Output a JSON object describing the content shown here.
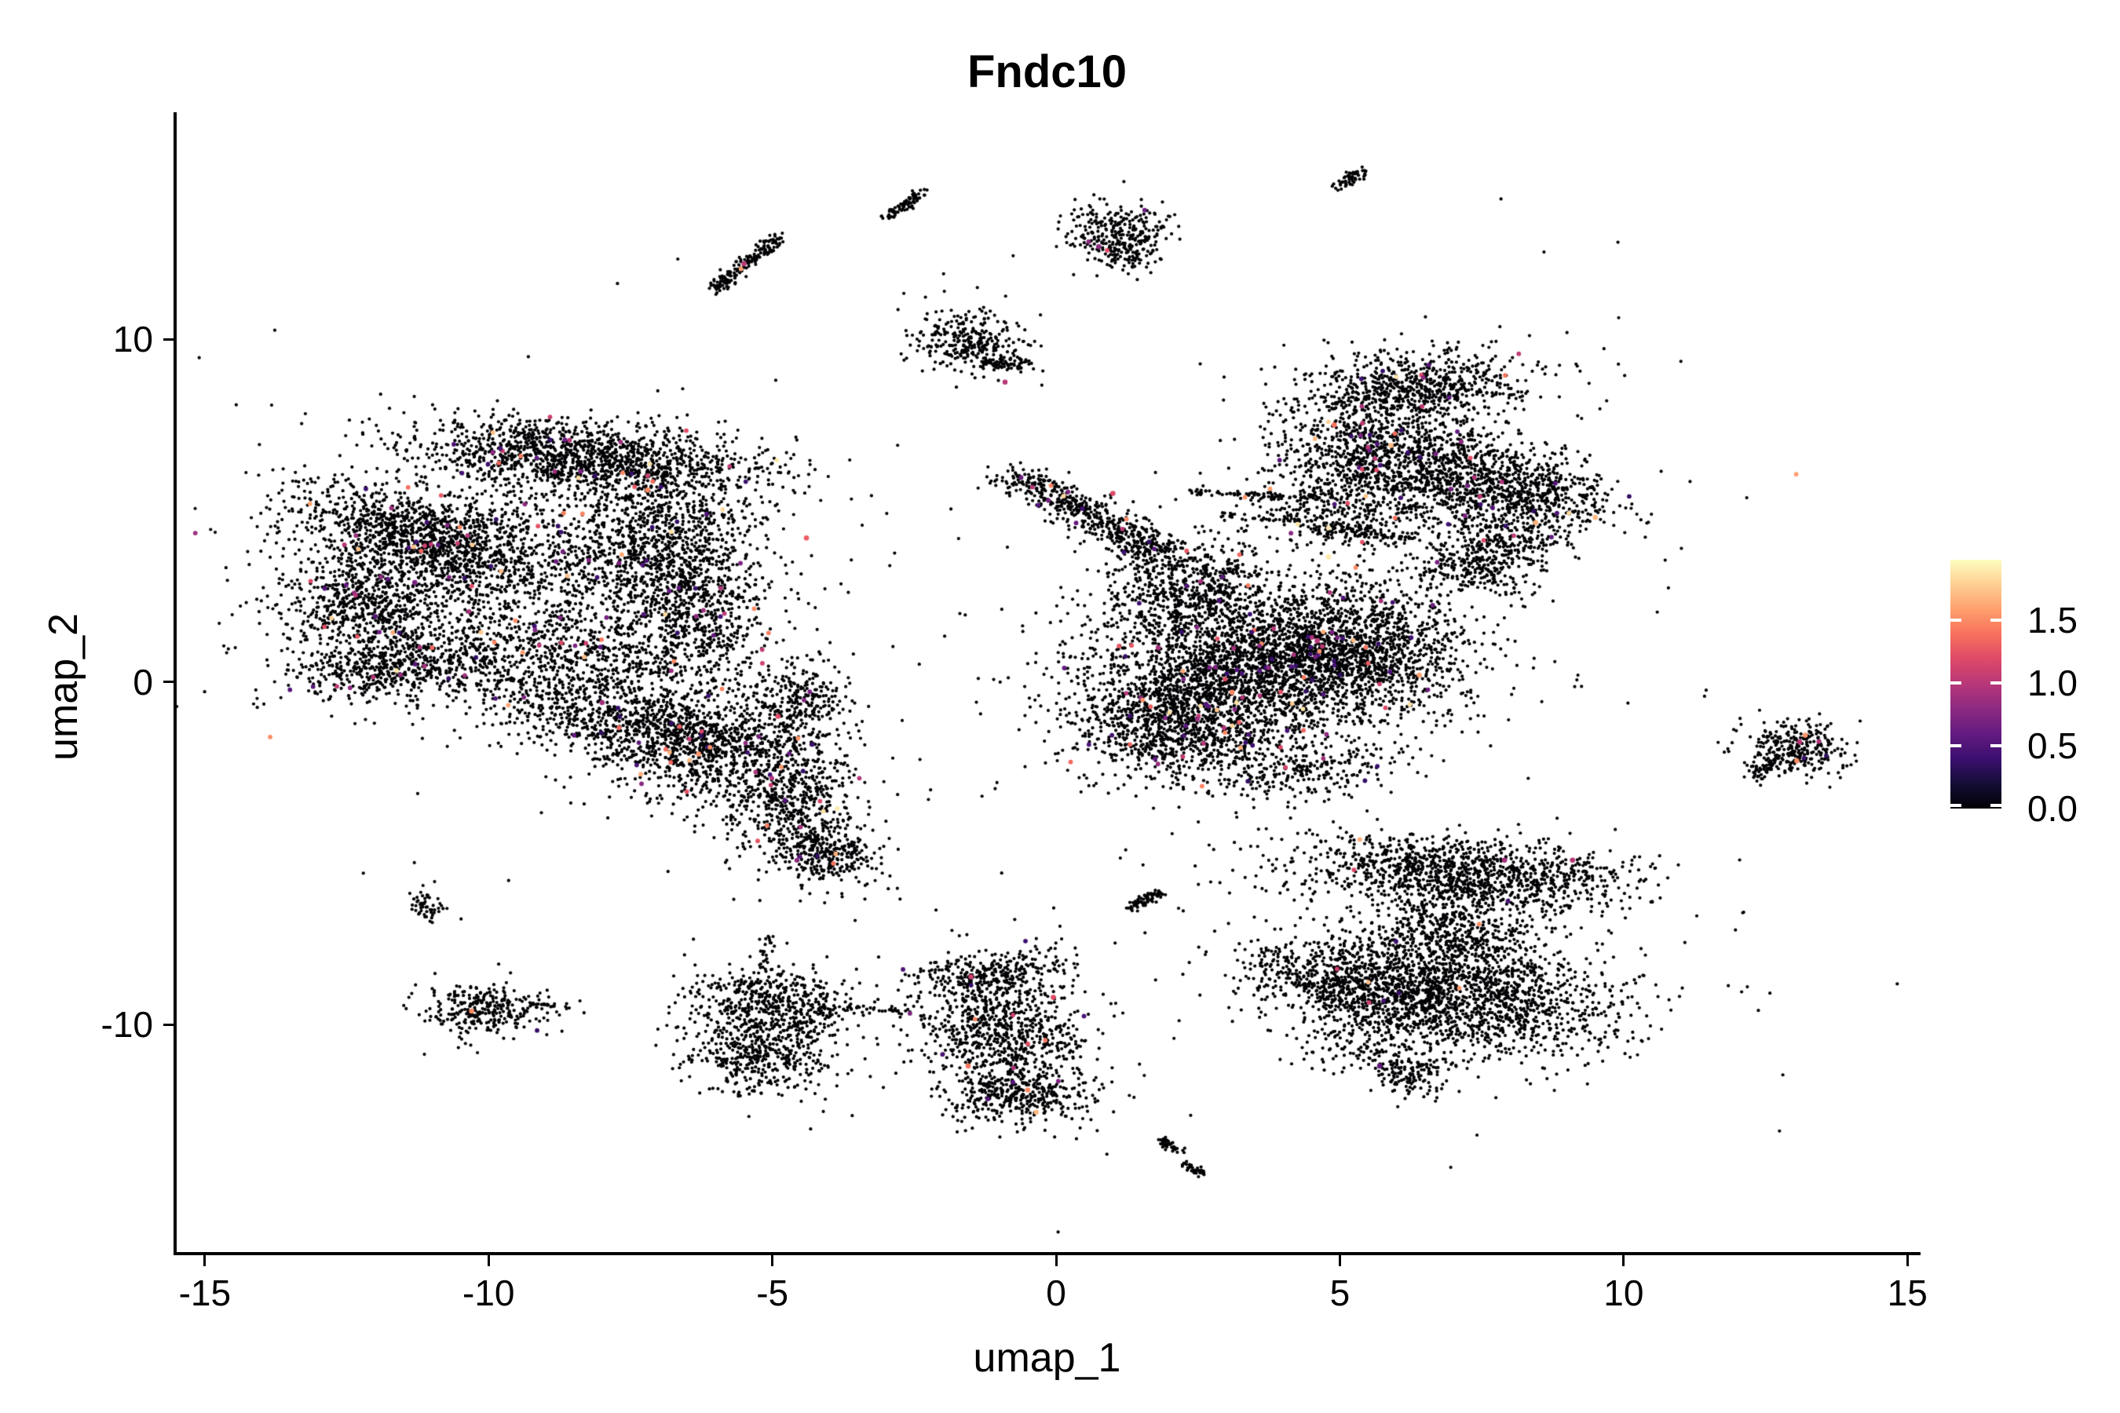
{
  "title": "Fndc10",
  "axes": {
    "x": {
      "label": "umap_1",
      "range": [
        -15.51,
        15.19
      ],
      "ticks": [
        {
          "value": -15,
          "label": "-15"
        },
        {
          "value": -10,
          "label": "-10"
        },
        {
          "value": -5,
          "label": "-5"
        },
        {
          "value": 0,
          "label": "0"
        },
        {
          "value": 5,
          "label": "5"
        },
        {
          "value": 10,
          "label": "10"
        },
        {
          "value": 15,
          "label": "15"
        }
      ]
    },
    "y": {
      "label": "umap_2",
      "range": [
        -16.63,
        16.62
      ],
      "ticks": [
        {
          "value": -10,
          "label": "-10"
        },
        {
          "value": 0,
          "label": "0"
        },
        {
          "value": 10,
          "label": "10"
        }
      ]
    }
  },
  "legend": {
    "max_value": 1.98,
    "ticks": [
      {
        "value": 1.5,
        "label": "1.5"
      },
      {
        "value": 1.0,
        "label": "1.0"
      },
      {
        "value": 0.5,
        "label": "0.5"
      },
      {
        "value": 0.0,
        "label": "0.0"
      }
    ],
    "gradient_stops": [
      "#000004",
      "#140e36",
      "#3b0f70",
      "#641a80",
      "#8c2981",
      "#b73779",
      "#de4968",
      "#f7705c",
      "#fe9f6d",
      "#fecf92",
      "#fcfdbf"
    ]
  },
  "chart_data": {
    "type": "scatter",
    "title": "Fndc10",
    "xlabel": "umap_1",
    "ylabel": "umap_2",
    "xlim": [
      -15.51,
      15.19
    ],
    "ylim": [
      -16.63,
      16.62
    ],
    "grid": false,
    "legend_position": "right",
    "point_color_zero": "#000004",
    "color_scale": {
      "name": "magma",
      "domain": [
        0,
        1.98
      ]
    },
    "seed": 42,
    "clusters": [
      {
        "n": 1400,
        "x": -8.3,
        "y": 6.55,
        "sx": 1.55,
        "sy": 0.5,
        "rot": -8,
        "cr": 0.02
      },
      {
        "n": 900,
        "x": -11.2,
        "y": 4.3,
        "sx": 1.15,
        "sy": 0.5,
        "rot": -28,
        "cr": 0.02
      },
      {
        "n": 700,
        "x": -12.1,
        "y": 2.3,
        "sx": 0.75,
        "sy": 0.95,
        "rot": 0,
        "cr": 0.02
      },
      {
        "n": 550,
        "x": -11.5,
        "y": 0.5,
        "sx": 1.05,
        "sy": 0.45,
        "rot": 14,
        "cr": 0.02
      },
      {
        "n": 1600,
        "x": -9.7,
        "y": 3.1,
        "sx": 1.85,
        "sy": 1.6,
        "rot": 0,
        "cr": 0.02
      },
      {
        "n": 950,
        "x": -6.9,
        "y": 4.1,
        "sx": 0.85,
        "sy": 1.15,
        "rot": 0,
        "cr": 0.02
      },
      {
        "n": 700,
        "x": -8.1,
        "y": 0.4,
        "sx": 1.5,
        "sy": 0.75,
        "rot": 5,
        "cr": 0.02
      },
      {
        "n": 420,
        "x": -6.3,
        "y": 1.9,
        "sx": 0.6,
        "sy": 0.95,
        "rot": 0,
        "cr": 0.02
      },
      {
        "n": 600,
        "x": -7.5,
        "y": -1.2,
        "sx": 1.05,
        "sy": 0.5,
        "rot": -12,
        "cr": 0.018
      },
      {
        "n": 900,
        "x": -5.9,
        "y": -2.0,
        "sx": 1.05,
        "sy": 0.8,
        "rot": 0,
        "cr": 0.018
      },
      {
        "n": 500,
        "x": -4.7,
        "y": -3.6,
        "sx": 0.55,
        "sy": 0.85,
        "rot": 0,
        "cr": 0.018
      },
      {
        "n": 300,
        "x": -4.0,
        "y": -5.1,
        "sx": 0.5,
        "sy": 0.4,
        "rot": -25,
        "cr": 0.018
      },
      {
        "n": 260,
        "x": -4.5,
        "y": -0.5,
        "sx": 0.5,
        "sy": 0.55,
        "rot": 0,
        "cr": 0.018
      },
      {
        "n": 170,
        "line": 1,
        "x": -6.05,
        "y": 11.45,
        "x2": -4.9,
        "y2": 12.95,
        "sx": 0.09,
        "sy": 0.09,
        "cr": 0.006
      },
      {
        "n": 80,
        "line": 1,
        "x": -2.95,
        "y": 13.55,
        "x2": -2.35,
        "y2": 14.35,
        "sx": 0.07,
        "sy": 0.07,
        "cr": 0
      },
      {
        "n": 300,
        "x": 1.12,
        "y": 13.1,
        "sx": 0.42,
        "sy": 0.46,
        "rot": 20,
        "cr": 0.01
      },
      {
        "n": 40,
        "x": 1.3,
        "y": 12.4,
        "sx": 0.3,
        "sy": 0.25,
        "rot": 0,
        "cr": 0
      },
      {
        "n": 300,
        "x": -1.5,
        "y": 9.95,
        "sx": 0.55,
        "sy": 0.42,
        "rot": -35,
        "cr": 0.01
      },
      {
        "n": 70,
        "line": 1,
        "x": -1.3,
        "y": 9.3,
        "x2": -0.5,
        "y2": 9.25,
        "sx": 0.08,
        "sy": 0.08,
        "cr": 0.01
      },
      {
        "n": 60,
        "line": 1,
        "x": 4.95,
        "y": 14.4,
        "x2": 5.45,
        "y2": 14.95,
        "sx": 0.07,
        "sy": 0.07,
        "cr": 0
      },
      {
        "n": 2600,
        "x": 3.6,
        "y": 0.7,
        "sx": 1.5,
        "sy": 1.05,
        "rot": 0,
        "cr": 0.02
      },
      {
        "n": 1200,
        "x": 2.2,
        "y": -1.2,
        "sx": 1.0,
        "sy": 0.85,
        "rot": 0,
        "cr": 0.02
      },
      {
        "n": 950,
        "x": 5.4,
        "y": 0.9,
        "sx": 0.9,
        "sy": 1.0,
        "rot": 0,
        "cr": 0.02
      },
      {
        "n": 560,
        "line": 1,
        "x": -0.75,
        "y": 6.05,
        "x2": 1.9,
        "y2": 3.7,
        "sx": 0.3,
        "sy": 0.22,
        "cr": 0.02
      },
      {
        "n": 520,
        "x": 2.4,
        "y": 2.9,
        "sx": 0.8,
        "sy": 0.65,
        "rot": -20,
        "cr": 0.02
      },
      {
        "n": 90,
        "line": 1,
        "x": 2.3,
        "y": 5.55,
        "x2": 4.9,
        "y2": 5.35,
        "sx": 0.05,
        "sy": 0.05,
        "cr": 0.01
      },
      {
        "n": 75,
        "line": 1,
        "x": 2.9,
        "y": 4.9,
        "x2": 5.9,
        "y2": 4.35,
        "sx": 0.06,
        "sy": 0.06,
        "cr": 0.01
      },
      {
        "n": 260,
        "x": 4.3,
        "y": -2.5,
        "sx": 0.8,
        "sy": 0.4,
        "rot": 8,
        "cr": 0.01
      },
      {
        "n": 720,
        "x": 6.4,
        "y": 8.55,
        "sx": 1.0,
        "sy": 0.52,
        "rot": 8,
        "cr": 0.015
      },
      {
        "n": 820,
        "x": 5.45,
        "y": 6.7,
        "sx": 0.8,
        "sy": 0.9,
        "rot": 0,
        "cr": 0.015
      },
      {
        "n": 720,
        "x": 6.9,
        "y": 6.0,
        "sx": 0.9,
        "sy": 0.75,
        "rot": 0,
        "cr": 0.015
      },
      {
        "n": 470,
        "x": 8.35,
        "y": 5.6,
        "sx": 0.8,
        "sy": 0.5,
        "rot": -18,
        "cr": 0.015
      },
      {
        "n": 360,
        "x": 8.0,
        "y": 4.2,
        "sx": 0.55,
        "sy": 0.6,
        "rot": 0,
        "cr": 0.015
      },
      {
        "n": 190,
        "x": 7.2,
        "y": 3.3,
        "sx": 0.5,
        "sy": 0.33,
        "rot": -15,
        "cr": 0.01
      },
      {
        "n": 230,
        "x": 5.0,
        "y": 4.9,
        "sx": 0.8,
        "sy": 0.55,
        "rot": -15,
        "cr": 0.015
      },
      {
        "n": 60,
        "line": 1,
        "x": 4.6,
        "y": 4.35,
        "x2": 6.3,
        "y2": 4.2,
        "sx": 0.06,
        "sy": 0.06,
        "cr": 0
      },
      {
        "n": 1250,
        "x": 7.2,
        "y": -5.6,
        "sx": 1.5,
        "sy": 0.5,
        "rot": -6,
        "cr": 0.004
      },
      {
        "n": 1800,
        "x": 7.0,
        "y": -9.2,
        "sx": 1.45,
        "sy": 0.85,
        "rot": -8,
        "cr": 0.004
      },
      {
        "n": 520,
        "x": 5.0,
        "y": -8.7,
        "sx": 0.9,
        "sy": 0.55,
        "rot": -25,
        "cr": 0.004
      },
      {
        "n": 620,
        "x": 6.9,
        "y": -7.4,
        "sx": 0.9,
        "sy": 0.75,
        "rot": 0,
        "cr": 0.004
      },
      {
        "n": 130,
        "x": 6.3,
        "y": -11.4,
        "sx": 0.34,
        "sy": 0.28,
        "rot": -20,
        "cr": 0
      },
      {
        "n": 90,
        "x": 5.4,
        "y": -10.7,
        "sx": 0.55,
        "sy": 0.45,
        "rot": 0,
        "cr": 0
      },
      {
        "n": 70,
        "line": 1,
        "x": 1.3,
        "y": -6.6,
        "x2": 1.8,
        "y2": -6.1,
        "sx": 0.07,
        "sy": 0.07,
        "cr": 0
      },
      {
        "n": 260,
        "x": -1.15,
        "y": -8.5,
        "sx": 0.72,
        "sy": 0.3,
        "rot": 12,
        "cr": 0.008
      },
      {
        "n": 950,
        "x": -0.95,
        "y": -10.3,
        "sx": 0.72,
        "sy": 1.05,
        "rot": 8,
        "cr": 0.008
      },
      {
        "n": 260,
        "x": -0.6,
        "y": -12.15,
        "sx": 0.6,
        "sy": 0.33,
        "rot": 0,
        "cr": 0.008
      },
      {
        "n": 45,
        "line": 1,
        "x": 1.8,
        "y": -13.3,
        "x2": 2.2,
        "y2": -13.7,
        "sx": 0.06,
        "sy": 0.06,
        "cr": 0
      },
      {
        "n": 35,
        "line": 1,
        "x": 2.25,
        "y": -14.05,
        "x2": 2.6,
        "y2": -14.35,
        "sx": 0.05,
        "sy": 0.05,
        "cr": 0
      },
      {
        "n": 470,
        "x": -5.0,
        "y": -9.3,
        "sx": 0.72,
        "sy": 0.5,
        "rot": -8,
        "cr": 0.004
      },
      {
        "n": 470,
        "x": -5.25,
        "y": -10.9,
        "sx": 0.62,
        "sy": 0.58,
        "rot": 0,
        "cr": 0.004
      },
      {
        "n": 25,
        "line": 1,
        "x": -5.2,
        "y": -8.45,
        "x2": -5.05,
        "y2": -7.4,
        "sx": 0.06,
        "sy": 0.06,
        "cr": 0
      },
      {
        "n": 38,
        "line": 1,
        "x": -4.25,
        "y": -9.5,
        "x2": -2.55,
        "y2": -9.6,
        "sx": 0.05,
        "sy": 0.05,
        "cr": 0
      },
      {
        "n": 45,
        "x": -4.3,
        "y": -9.9,
        "sx": 0.35,
        "sy": 0.3,
        "rot": 0,
        "cr": 0
      },
      {
        "n": 300,
        "x": -10.0,
        "y": -9.55,
        "sx": 0.55,
        "sy": 0.36,
        "rot": -8,
        "cr": 0.004
      },
      {
        "n": 14,
        "line": 1,
        "x": -9.25,
        "y": -9.4,
        "x2": -8.65,
        "y2": -9.45,
        "sx": 0.05,
        "sy": 0.05,
        "cr": 0
      },
      {
        "n": 55,
        "x": -11.05,
        "y": -6.55,
        "sx": 0.16,
        "sy": 0.22,
        "rot": 25,
        "cr": 0
      },
      {
        "n": 290,
        "x": 13.0,
        "y": -1.9,
        "sx": 0.45,
        "sy": 0.38,
        "rot": -10,
        "cr": 0.01
      },
      {
        "n": 55,
        "line": 1,
        "x": 12.35,
        "y": -2.75,
        "x2": 12.75,
        "y2": -2.2,
        "sx": 0.1,
        "sy": 0.1,
        "cr": 0
      }
    ],
    "highlight_points": [
      {
        "x": 13.2,
        "y": -1.55,
        "v": 1.55
      },
      {
        "x": 13.05,
        "y": -2.3,
        "v": 1.5
      },
      {
        "x": 13.1,
        "y": -1.75,
        "v": 1.0
      },
      {
        "x": -10.3,
        "y": -9.6,
        "v": 1.5
      },
      {
        "x": -0.9,
        "y": 8.75,
        "v": 1.0
      },
      {
        "x": 0.75,
        "y": 12.7,
        "v": 0.8
      },
      {
        "x": -4.4,
        "y": 4.2,
        "v": 1.3
      },
      {
        "x": -7.2,
        "y": 5.6,
        "v": 1.5
      },
      {
        "x": -11.3,
        "y": 2.9,
        "v": 0.7
      },
      {
        "x": 3.1,
        "y": -0.3,
        "v": 1.5
      },
      {
        "x": 4.6,
        "y": 1.2,
        "v": 1.0
      },
      {
        "x": 6.4,
        "y": 0.2,
        "v": 1.6
      },
      {
        "x": 1.8,
        "y": 1.0,
        "v": 0.9
      },
      {
        "x": 4.8,
        "y": 3.65,
        "v": 1.9
      },
      {
        "x": 5.9,
        "y": 6.9,
        "v": 1.7
      },
      {
        "x": 4.9,
        "y": 7.5,
        "v": 1.4
      },
      {
        "x": 8.45,
        "y": 4.65,
        "v": 1.65
      },
      {
        "x": 9.5,
        "y": 4.8,
        "v": 1.7
      },
      {
        "x": -6.3,
        "y": -2.1,
        "v": 1.55
      },
      {
        "x": -4.9,
        "y": -1.0,
        "v": 1.2
      },
      {
        "x": -8.0,
        "y": -0.6,
        "v": 0.9
      },
      {
        "x": -0.5,
        "y": -11.9,
        "v": 1.5
      },
      {
        "x": -1.5,
        "y": -8.6,
        "v": 1.1
      },
      {
        "x": -0.05,
        "y": -9.2,
        "v": 1.2
      },
      {
        "x": -1.55,
        "y": -11.2,
        "v": 1.4
      },
      {
        "x": -0.35,
        "y": -12.55,
        "v": 1.7
      },
      {
        "x": 9.1,
        "y": -5.2,
        "v": 1.0
      },
      {
        "x": 5.7,
        "y": -11.2,
        "v": 0.6
      },
      {
        "x": 7.9,
        "y": -5.2,
        "v": 0.9
      },
      {
        "x": 1.0,
        "y": 5.5,
        "v": 1.2
      },
      {
        "x": -5.5,
        "y": 12.2,
        "v": 1.0
      }
    ]
  }
}
